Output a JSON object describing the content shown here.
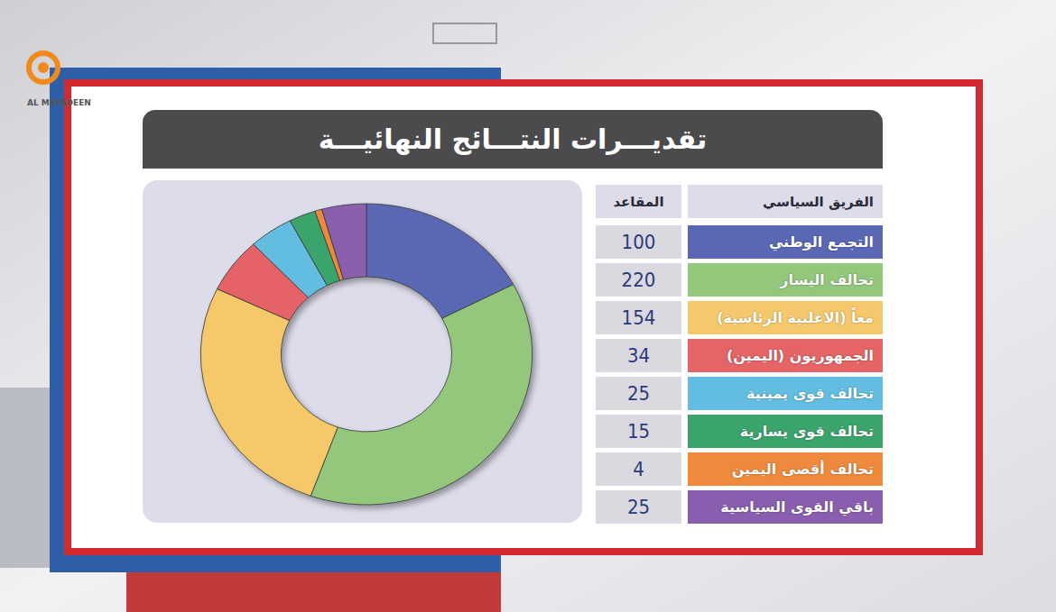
{
  "chart_data": {
    "type": "pie",
    "title": "تقديـــرات النتـــائج النهائيـــة",
    "category_label": "الفريق السياسي",
    "value_label": "المقاعد",
    "categories": [
      "التجمع الوطني",
      "تحالف اليسار",
      "معاً (الاغلبية الرئاسية)",
      "الجمهوريون (اليمين)",
      "تحالف قوى يمينية",
      "تحالف قوى يسارية",
      "تحالف أقصى اليمين",
      "باقي القوى السياسية"
    ],
    "values": [
      100,
      220,
      154,
      34,
      25,
      15,
      4,
      25
    ],
    "colors": [
      "#5a67b4",
      "#92c77c",
      "#f5c96b",
      "#e56466",
      "#62bde0",
      "#3ba36c",
      "#ef8a3d",
      "#8a5eae"
    ],
    "watermark": "AL MAYADEEN"
  }
}
